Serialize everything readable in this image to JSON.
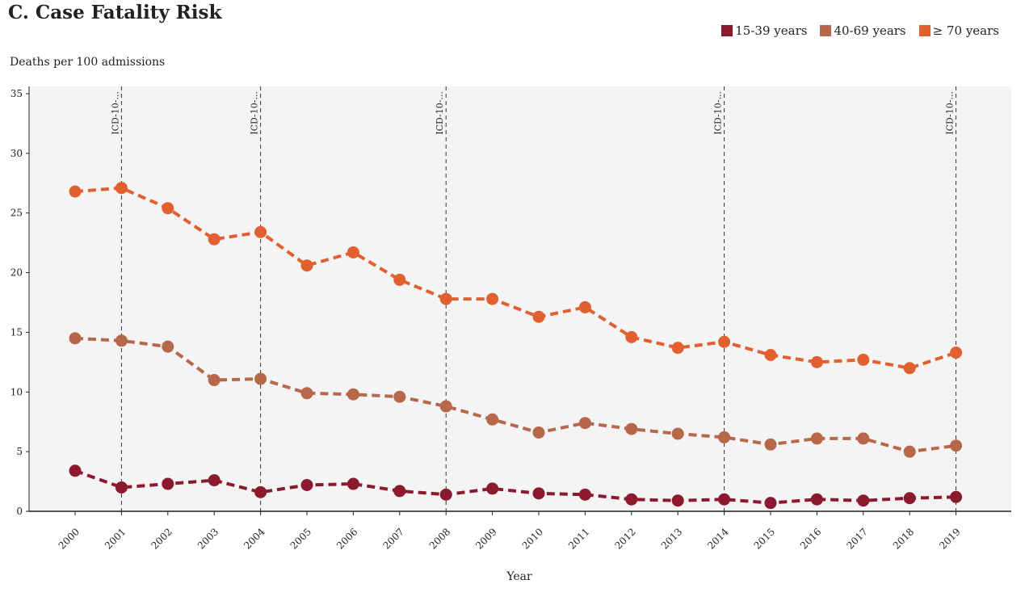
{
  "chart_data": {
    "type": "line",
    "title": "C. Case Fatality Risk",
    "ylabel": "Deaths per 100 admissions",
    "xlabel": "Year",
    "categories": [
      "2000",
      "2001",
      "2002",
      "2003",
      "2004",
      "2005",
      "2006",
      "2007",
      "2008",
      "2009",
      "2010",
      "2011",
      "2012",
      "2013",
      "2014",
      "2015",
      "2016",
      "2017",
      "2018",
      "2019"
    ],
    "ylim": [
      0,
      35
    ],
    "yticks": [
      "0",
      "5",
      "10",
      "15",
      "20",
      "25",
      "30",
      "35"
    ],
    "grid": false,
    "legend_position": "top-right",
    "series": [
      {
        "name": "15-39 years",
        "color": "#8b1a2e",
        "values": [
          3.4,
          2.0,
          2.3,
          2.6,
          1.6,
          2.2,
          2.3,
          1.7,
          1.4,
          1.9,
          1.5,
          1.4,
          1.0,
          0.9,
          1.0,
          0.7,
          1.0,
          0.9,
          1.1,
          1.2
        ]
      },
      {
        "name": "40-69 years",
        "color": "#b8684a",
        "values": [
          14.5,
          14.3,
          13.8,
          11.0,
          11.1,
          9.9,
          9.8,
          9.6,
          8.8,
          7.7,
          6.6,
          7.4,
          6.9,
          6.5,
          6.2,
          5.6,
          6.1,
          6.1,
          5.0,
          5.5
        ]
      },
      {
        "name": "≥ 70 years",
        "color": "#e06030",
        "values": [
          26.8,
          27.1,
          25.4,
          22.8,
          23.4,
          20.6,
          21.7,
          19.4,
          17.8,
          17.8,
          16.3,
          17.1,
          14.6,
          13.7,
          14.2,
          13.1,
          12.5,
          12.7,
          12.0,
          13.3
        ]
      }
    ],
    "annotations": [
      {
        "x": "2001",
        "label": "ICD-10-..."
      },
      {
        "x": "2004",
        "label": "ICD-10-..."
      },
      {
        "x": "2008",
        "label": "ICD-10-..."
      },
      {
        "x": "2014",
        "label": "ICD-10-..."
      },
      {
        "x": "2019",
        "label": "ICD-10-..."
      }
    ]
  }
}
